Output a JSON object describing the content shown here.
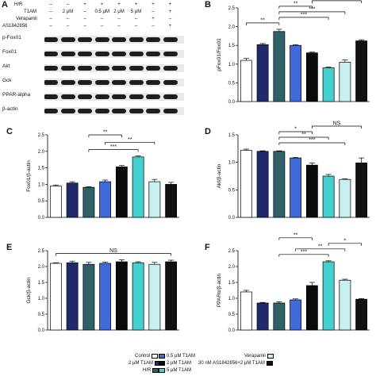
{
  "panel_letters": [
    "A",
    "B",
    "C",
    "D",
    "E",
    "F"
  ],
  "blot": {
    "conditions": [
      {
        "label": "H/R",
        "values": [
          "–",
          "–",
          "+",
          "+",
          "+",
          "+",
          "+",
          "+"
        ]
      },
      {
        "label": "T1AM",
        "values": [
          "–",
          "2 μM",
          "–",
          "0.5 μM",
          "2 μM",
          "5 μM",
          "–",
          "+"
        ]
      },
      {
        "label": "Verapamil",
        "values": [
          "–",
          "–",
          "–",
          "–",
          "–",
          "–",
          "+",
          "–"
        ]
      },
      {
        "label": "AS1842856",
        "values": [
          "–",
          "–",
          "–",
          "–",
          "–",
          "–",
          "–",
          "+"
        ]
      }
    ],
    "rows": [
      "p-Fox01",
      "Fox01",
      "Akt",
      "Gck",
      "PPAR-alpha",
      "β-actin"
    ]
  },
  "colors": [
    "#ffffff",
    "#1f2a6b",
    "#2f6268",
    "#3f6ad8",
    "#0a0a0a",
    "#45d0d0",
    "#c8f0f0",
    "#111111"
  ],
  "legend": {
    "items": [
      "Control",
      "0.5 μM T1AM",
      "Verapamil",
      "2 μM T1AM",
      "2 μM T1AM",
      "30 nM AS1842856+2 μM T1AM",
      "H/R",
      "5 μM T1AM"
    ]
  },
  "chart_data": [
    {
      "panel": "B",
      "type": "bar",
      "ylabel": "pFox01/Fox01",
      "ylim": [
        0,
        2.5
      ],
      "yticks": [
        "0.0",
        "0.5",
        "1.0",
        "1.5",
        "2.0",
        "2.5"
      ],
      "values": [
        1.1,
        1.52,
        1.87,
        1.5,
        1.3,
        0.9,
        1.05,
        1.62
      ],
      "errors": [
        0.05,
        0.03,
        0.06,
        0.02,
        0.02,
        0.02,
        0.06,
        0.03
      ],
      "annotations": [
        {
          "from": 0,
          "to": 2,
          "label": "**"
        },
        {
          "from": 2,
          "to": 5,
          "label": "***"
        },
        {
          "from": 2,
          "to": 6,
          "label": "***"
        },
        {
          "from": 2,
          "to": 4,
          "label": "**"
        },
        {
          "from": 4,
          "to": 7,
          "label": "*"
        }
      ]
    },
    {
      "panel": "C",
      "type": "bar",
      "ylabel": "Fox01/β-actin",
      "ylim": [
        0,
        2.5
      ],
      "yticks": [
        "0.0",
        "0.5",
        "1.0",
        "1.5",
        "2.0",
        "2.5"
      ],
      "values": [
        0.95,
        1.04,
        0.91,
        1.08,
        1.53,
        1.83,
        1.08,
        1.0
      ],
      "errors": [
        0.03,
        0.04,
        0.02,
        0.05,
        0.04,
        0.03,
        0.07,
        0.06
      ],
      "annotations": [
        {
          "from": 2,
          "to": 5,
          "label": "***"
        },
        {
          "from": 3,
          "to": 6,
          "label": "**"
        },
        {
          "from": 2,
          "to": 4,
          "label": "**"
        }
      ]
    },
    {
      "panel": "D",
      "type": "bar",
      "ylabel": "Akt/β-actin",
      "ylim": [
        0,
        1.5
      ],
      "yticks": [
        "0.0",
        "0.5",
        "1.0",
        "1.5"
      ],
      "values": [
        1.22,
        1.2,
        1.2,
        1.08,
        0.95,
        0.75,
        0.69,
        0.99
      ],
      "errors": [
        0.02,
        0.01,
        0.01,
        0.01,
        0.04,
        0.03,
        0.01,
        0.09
      ],
      "annotations": [
        {
          "from": 2,
          "to": 6,
          "label": "***"
        },
        {
          "from": 2,
          "to": 5,
          "label": "**"
        },
        {
          "from": 2,
          "to": 4,
          "label": "*"
        },
        {
          "from": 4,
          "to": 7,
          "label": "NS"
        }
      ]
    },
    {
      "panel": "E",
      "type": "bar",
      "ylabel": "Gck/β-actin",
      "ylim": [
        0,
        2.5
      ],
      "yticks": [
        "0.0",
        "0.5",
        "1.0",
        "1.5",
        "2.0",
        "2.5"
      ],
      "values": [
        2.1,
        2.12,
        2.07,
        2.1,
        2.15,
        2.12,
        2.07,
        2.15
      ],
      "errors": [
        0.02,
        0.05,
        0.06,
        0.04,
        0.06,
        0.03,
        0.06,
        0.05
      ],
      "annotations": [
        {
          "from": 0,
          "to": 7,
          "label": "NS"
        }
      ]
    },
    {
      "panel": "F",
      "type": "bar",
      "ylabel": "PPARα/β-actin",
      "ylim": [
        0,
        2.5
      ],
      "yticks": [
        "0.0",
        "0.5",
        "1.0",
        "1.5",
        "2.0",
        "2.5"
      ],
      "values": [
        1.2,
        0.85,
        0.85,
        0.95,
        1.4,
        2.15,
        1.57,
        0.97
      ],
      "errors": [
        0.05,
        0.02,
        0.04,
        0.03,
        0.1,
        0.03,
        0.03,
        0.02
      ],
      "annotations": [
        {
          "from": 2,
          "to": 5,
          "label": "***"
        },
        {
          "from": 3,
          "to": 6,
          "label": "**"
        },
        {
          "from": 5,
          "to": 7,
          "label": "*"
        },
        {
          "from": 2,
          "to": 4,
          "label": "**"
        }
      ]
    }
  ]
}
